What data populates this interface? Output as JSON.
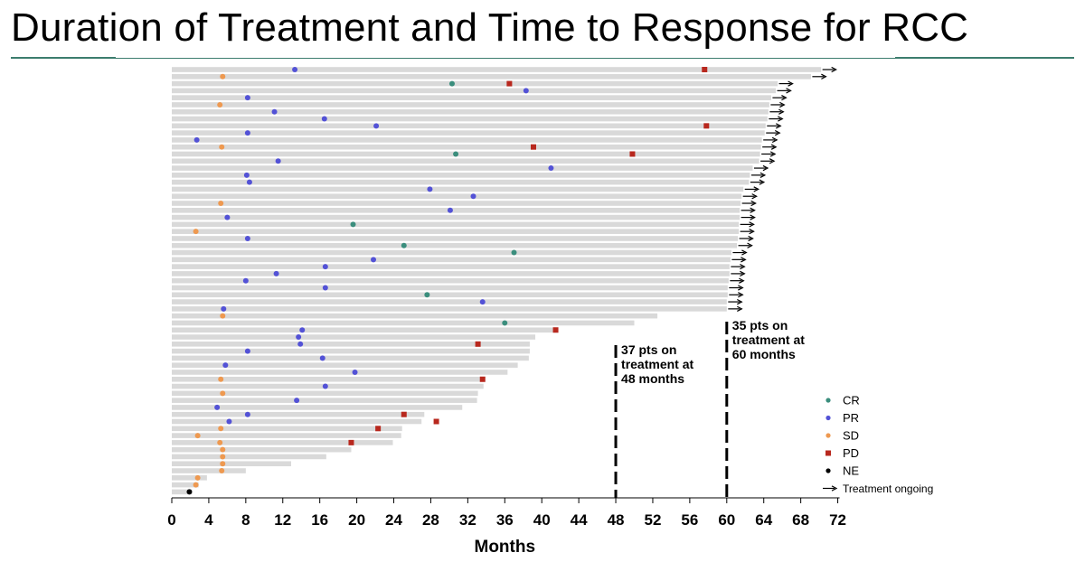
{
  "page": {
    "title": "Duration of Treatment and Time to Response for RCC"
  },
  "colors": {
    "bar": "#d9d9d9",
    "CR": "#3b8e7d",
    "PR": "#5352d6",
    "SD": "#ee9950",
    "PD": "#b8281e",
    "NE": "#000000",
    "rule": "#3d7d6e"
  },
  "chart_data": {
    "type": "bar",
    "orientation": "horizontal (swimmer plot)",
    "xlabel": "Months",
    "xlim": [
      0,
      72
    ],
    "xticks": [
      0,
      4,
      8,
      12,
      16,
      20,
      24,
      28,
      32,
      36,
      40,
      44,
      48,
      52,
      56,
      60,
      64,
      68,
      72
    ],
    "grid": false,
    "legend_position": "bottom-right",
    "legend": [
      {
        "key": "CR",
        "label": "CR",
        "shape": "circle"
      },
      {
        "key": "PR",
        "label": "PR",
        "shape": "circle"
      },
      {
        "key": "SD",
        "label": "SD",
        "shape": "circle"
      },
      {
        "key": "PD",
        "label": "PD",
        "shape": "square"
      },
      {
        "key": "NE",
        "label": "NE",
        "shape": "circle"
      },
      {
        "key": "ongoing",
        "label": "Treatment ongoing",
        "shape": "arrow"
      }
    ],
    "reference_lines": [
      {
        "x": 48,
        "style": "dashed",
        "label": [
          "37 pts on",
          "treatment at",
          "48 months"
        ]
      },
      {
        "x": 60,
        "style": "dashed",
        "label": [
          "35 pts on",
          "treatment at",
          "60 months"
        ]
      }
    ],
    "patients": [
      {
        "duration": 70.2,
        "ongoing": true,
        "response": "PR",
        "response_month": 13.3,
        "pd_month": 57.6
      },
      {
        "duration": 69.1,
        "ongoing": true,
        "response": "SD",
        "response_month": 5.5,
        "pd_month": null
      },
      {
        "duration": 65.5,
        "ongoing": true,
        "response": "CR",
        "response_month": 30.3,
        "pd_month": 36.5
      },
      {
        "duration": 65.3,
        "ongoing": true,
        "response": "PR",
        "response_month": 38.3,
        "pd_month": null
      },
      {
        "duration": 64.8,
        "ongoing": true,
        "response": "PR",
        "response_month": 8.2,
        "pd_month": null
      },
      {
        "duration": 64.6,
        "ongoing": true,
        "response": "SD",
        "response_month": 5.2,
        "pd_month": null
      },
      {
        "duration": 64.5,
        "ongoing": true,
        "response": "PR",
        "response_month": 11.1,
        "pd_month": null
      },
      {
        "duration": 64.4,
        "ongoing": true,
        "response": "PR",
        "response_month": 16.5,
        "pd_month": null
      },
      {
        "duration": 64.2,
        "ongoing": true,
        "response": "PR",
        "response_month": 22.1,
        "pd_month": 57.8
      },
      {
        "duration": 64.1,
        "ongoing": true,
        "response": "PR",
        "response_month": 8.2,
        "pd_month": null
      },
      {
        "duration": 63.8,
        "ongoing": true,
        "response": "PR",
        "response_month": 2.7,
        "pd_month": null
      },
      {
        "duration": 63.7,
        "ongoing": true,
        "response": "SD",
        "response_month": 5.4,
        "pd_month": 39.1
      },
      {
        "duration": 63.6,
        "ongoing": true,
        "response": "CR",
        "response_month": 30.7,
        "pd_month": 49.8
      },
      {
        "duration": 63.5,
        "ongoing": true,
        "response": "PR",
        "response_month": 11.5,
        "pd_month": null
      },
      {
        "duration": 62.8,
        "ongoing": true,
        "response": "PR",
        "response_month": 41.0,
        "pd_month": null
      },
      {
        "duration": 62.5,
        "ongoing": true,
        "response": "PR",
        "response_month": 8.1,
        "pd_month": null
      },
      {
        "duration": 62.4,
        "ongoing": true,
        "response": "PR",
        "response_month": 8.4,
        "pd_month": null
      },
      {
        "duration": 61.8,
        "ongoing": true,
        "response": "PR",
        "response_month": 27.9,
        "pd_month": null
      },
      {
        "duration": 61.6,
        "ongoing": true,
        "response": "PR",
        "response_month": 32.6,
        "pd_month": null
      },
      {
        "duration": 61.5,
        "ongoing": true,
        "response": "SD",
        "response_month": 5.3,
        "pd_month": null
      },
      {
        "duration": 61.4,
        "ongoing": true,
        "response": "PR",
        "response_month": 30.1,
        "pd_month": null
      },
      {
        "duration": 61.4,
        "ongoing": true,
        "response": "PR",
        "response_month": 6.0,
        "pd_month": null
      },
      {
        "duration": 61.3,
        "ongoing": true,
        "response": "CR",
        "response_month": 19.6,
        "pd_month": null
      },
      {
        "duration": 61.3,
        "ongoing": true,
        "response": "SD",
        "response_month": 2.6,
        "pd_month": null
      },
      {
        "duration": 61.2,
        "ongoing": true,
        "response": "PR",
        "response_month": 8.2,
        "pd_month": null
      },
      {
        "duration": 61.1,
        "ongoing": true,
        "response": "CR",
        "response_month": 25.1,
        "pd_month": null
      },
      {
        "duration": 60.5,
        "ongoing": true,
        "response": "CR",
        "response_month": 37.0,
        "pd_month": null
      },
      {
        "duration": 60.4,
        "ongoing": true,
        "response": "PR",
        "response_month": 21.8,
        "pd_month": null
      },
      {
        "duration": 60.3,
        "ongoing": true,
        "response": "PR",
        "response_month": 16.6,
        "pd_month": null
      },
      {
        "duration": 60.3,
        "ongoing": true,
        "response": "PR",
        "response_month": 11.3,
        "pd_month": null
      },
      {
        "duration": 60.2,
        "ongoing": true,
        "response": "PR",
        "response_month": 8.0,
        "pd_month": null
      },
      {
        "duration": 60.1,
        "ongoing": true,
        "response": "PR",
        "response_month": 16.6,
        "pd_month": null
      },
      {
        "duration": 60.1,
        "ongoing": true,
        "response": "CR",
        "response_month": 27.6,
        "pd_month": null
      },
      {
        "duration": 60.0,
        "ongoing": true,
        "response": "PR",
        "response_month": 33.6,
        "pd_month": null
      },
      {
        "duration": 60.0,
        "ongoing": true,
        "response": "PR",
        "response_month": 5.6,
        "pd_month": null
      },
      {
        "duration": 52.5,
        "ongoing": false,
        "response": "SD",
        "response_month": 5.5,
        "pd_month": null
      },
      {
        "duration": 50.0,
        "ongoing": false,
        "response": "CR",
        "response_month": 36.0,
        "pd_month": null
      },
      {
        "duration": 41.5,
        "ongoing": false,
        "response": "PR",
        "response_month": 14.1,
        "pd_month": 41.5
      },
      {
        "duration": 39.3,
        "ongoing": false,
        "response": "PR",
        "response_month": 13.7,
        "pd_month": null
      },
      {
        "duration": 38.7,
        "ongoing": false,
        "response": "PR",
        "response_month": 13.9,
        "pd_month": 33.1
      },
      {
        "duration": 38.7,
        "ongoing": false,
        "response": "PR",
        "response_month": 8.2,
        "pd_month": null
      },
      {
        "duration": 38.6,
        "ongoing": false,
        "response": "PR",
        "response_month": 16.3,
        "pd_month": null
      },
      {
        "duration": 37.4,
        "ongoing": false,
        "response": "PR",
        "response_month": 5.8,
        "pd_month": null
      },
      {
        "duration": 36.3,
        "ongoing": false,
        "response": "PR",
        "response_month": 19.8,
        "pd_month": null
      },
      {
        "duration": 33.9,
        "ongoing": false,
        "response": "SD",
        "response_month": 5.3,
        "pd_month": 33.6
      },
      {
        "duration": 33.7,
        "ongoing": false,
        "response": "PR",
        "response_month": 16.6,
        "pd_month": null
      },
      {
        "duration": 33.1,
        "ongoing": false,
        "response": "SD",
        "response_month": 5.5,
        "pd_month": null
      },
      {
        "duration": 33.0,
        "ongoing": false,
        "response": "PR",
        "response_month": 13.5,
        "pd_month": null
      },
      {
        "duration": 31.4,
        "ongoing": false,
        "response": "PR",
        "response_month": 4.9,
        "pd_month": null
      },
      {
        "duration": 27.3,
        "ongoing": false,
        "response": "PR",
        "response_month": 8.2,
        "pd_month": 25.1
      },
      {
        "duration": 27.0,
        "ongoing": false,
        "response": "PR",
        "response_month": 6.2,
        "pd_month": 28.6
      },
      {
        "duration": 24.9,
        "ongoing": false,
        "response": "SD",
        "response_month": 5.3,
        "pd_month": 22.3
      },
      {
        "duration": 24.8,
        "ongoing": false,
        "response": "SD",
        "response_month": 2.8,
        "pd_month": null
      },
      {
        "duration": 23.9,
        "ongoing": false,
        "response": "SD",
        "response_month": 5.2,
        "pd_month": 19.4
      },
      {
        "duration": 19.4,
        "ongoing": false,
        "response": "SD",
        "response_month": 5.5,
        "pd_month": null
      },
      {
        "duration": 16.7,
        "ongoing": false,
        "response": "SD",
        "response_month": 5.5,
        "pd_month": null
      },
      {
        "duration": 12.9,
        "ongoing": false,
        "response": "SD",
        "response_month": 5.5,
        "pd_month": null
      },
      {
        "duration": 8.0,
        "ongoing": false,
        "response": "SD",
        "response_month": 5.4,
        "pd_month": null
      },
      {
        "duration": 3.8,
        "ongoing": false,
        "response": "SD",
        "response_month": 2.8,
        "pd_month": null
      },
      {
        "duration": 2.9,
        "ongoing": false,
        "response": "SD",
        "response_month": 2.6,
        "pd_month": null
      },
      {
        "duration": 2.2,
        "ongoing": false,
        "response": "NE",
        "response_month": 1.9,
        "pd_month": null
      }
    ]
  }
}
